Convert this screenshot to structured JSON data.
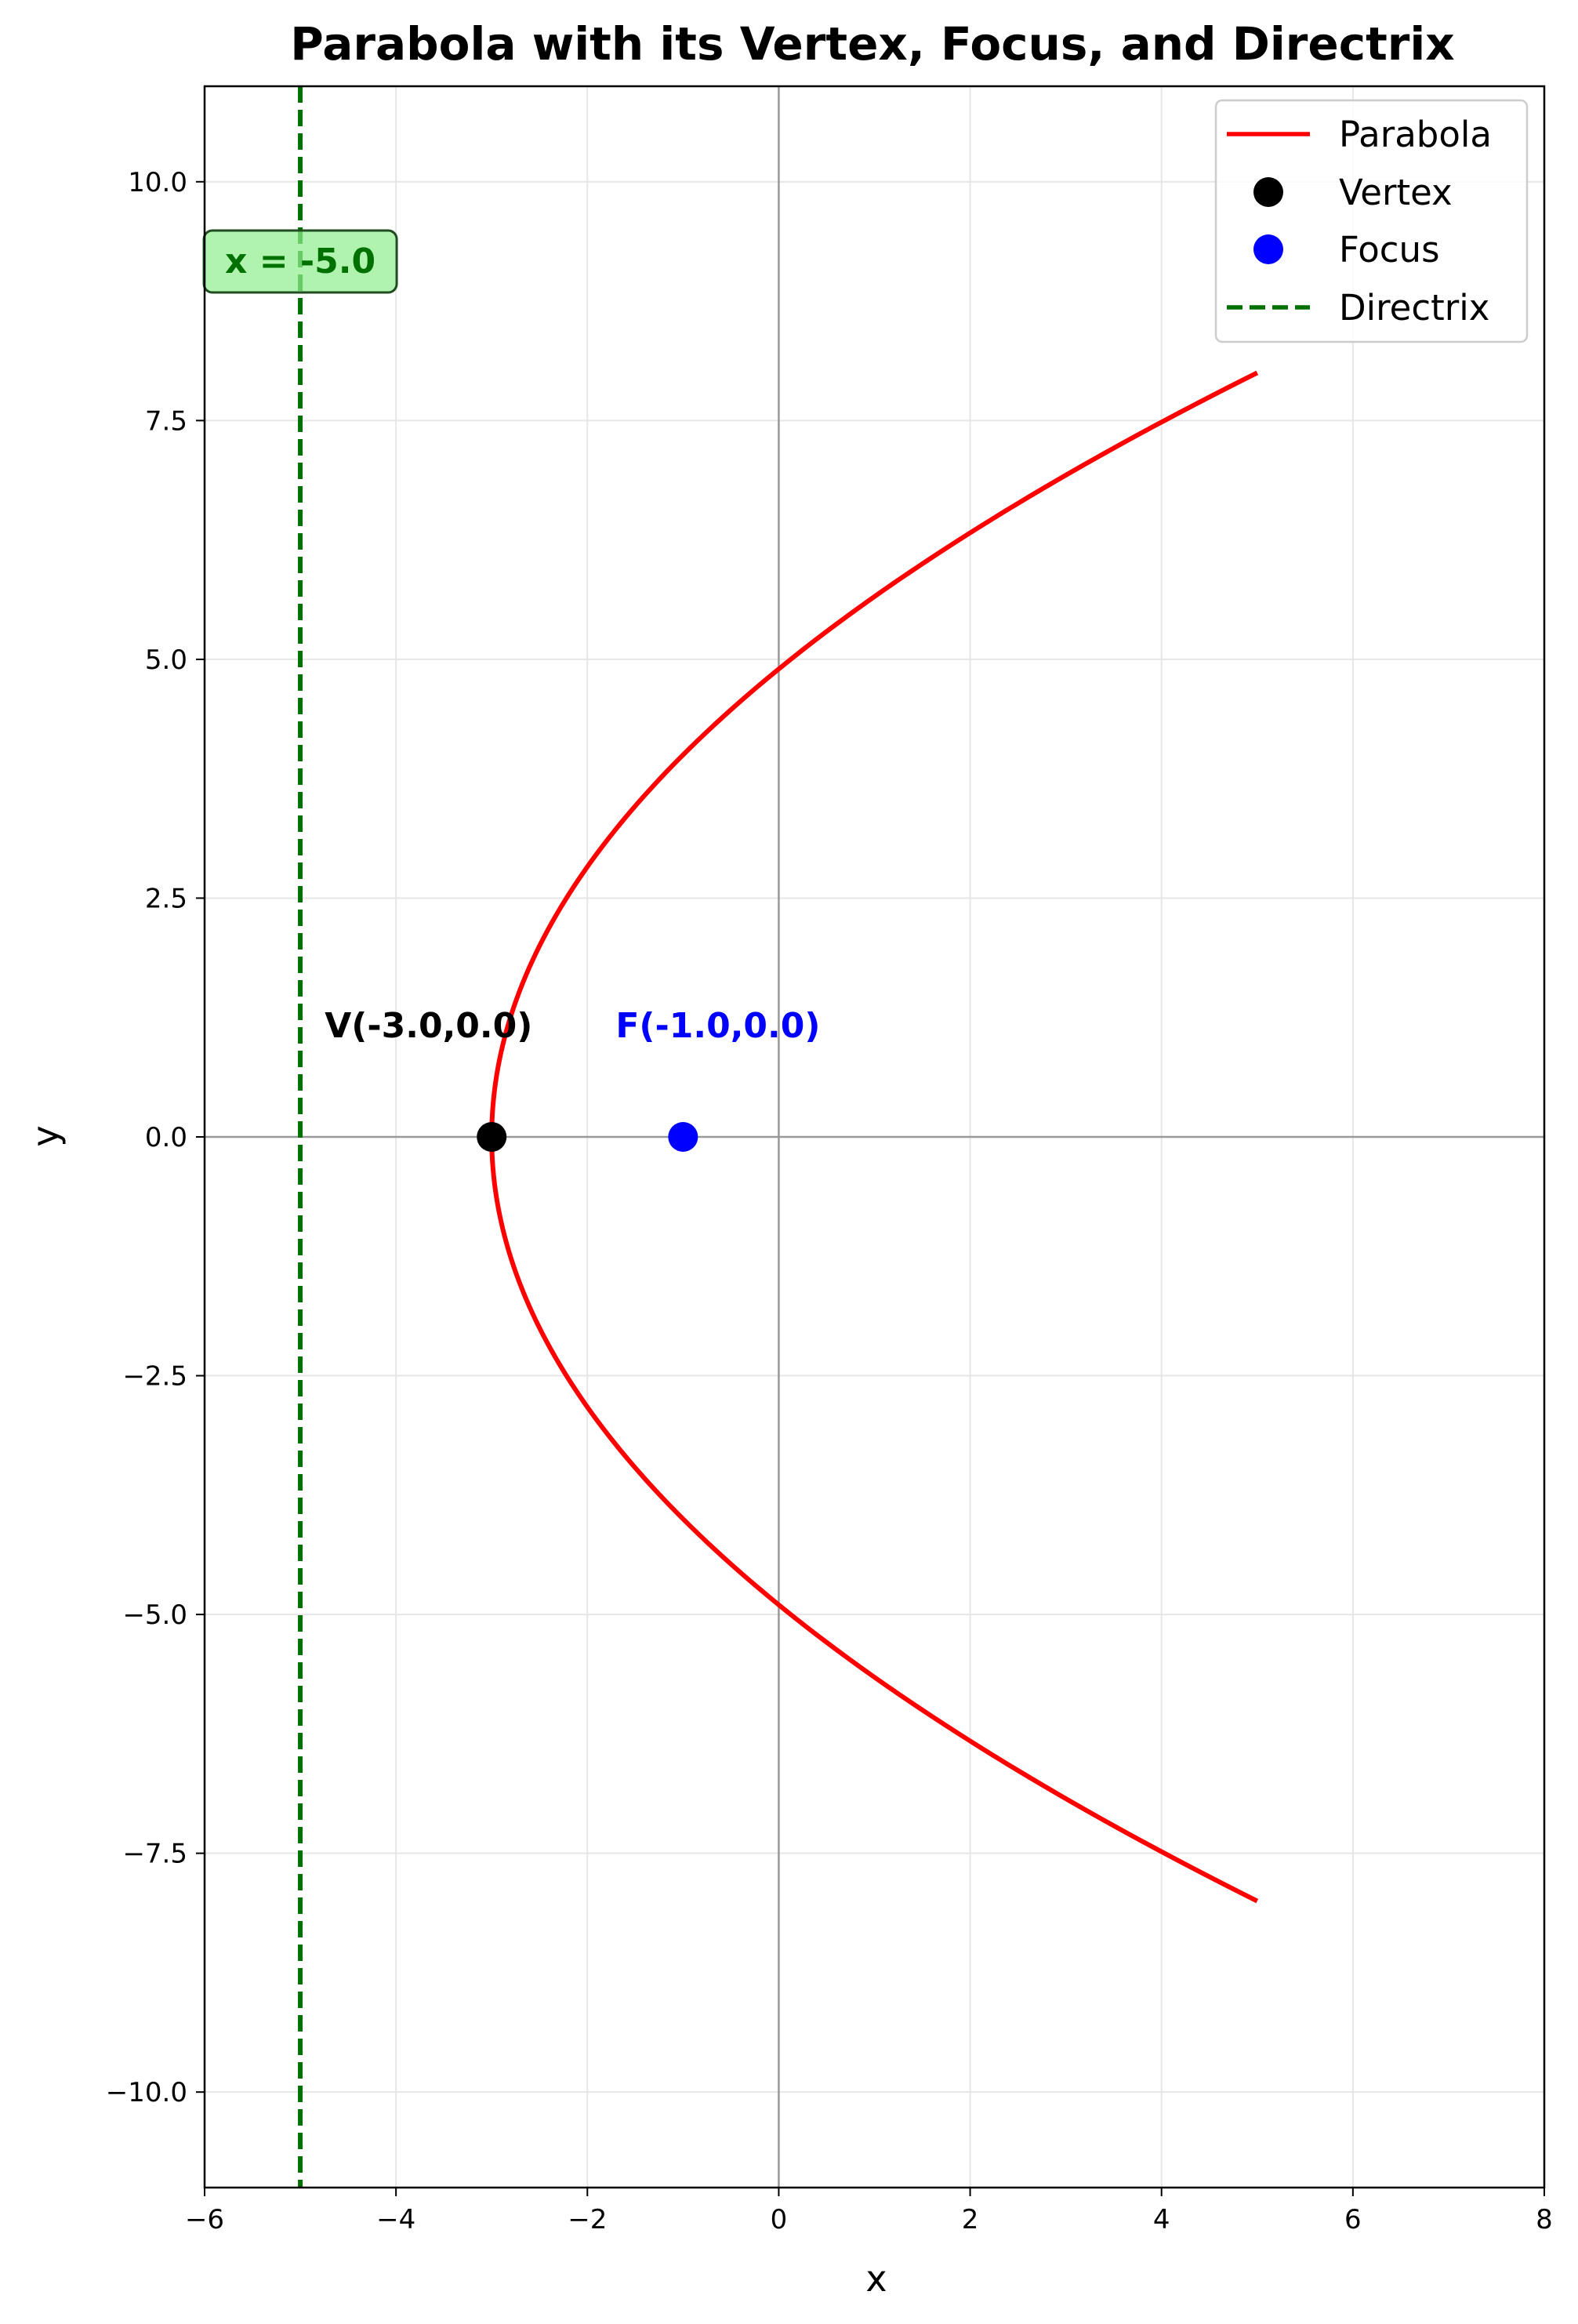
{
  "chart_data": {
    "type": "line",
    "title": "Parabola with its Vertex, Focus, and Directrix",
    "xlabel": "x",
    "ylabel": "y",
    "xlim": [
      -6,
      8
    ],
    "ylim": [
      -11,
      11
    ],
    "xticks": [
      -6,
      -4,
      -2,
      0,
      2,
      4,
      6,
      8
    ],
    "xtick_labels": [
      "−6",
      "−4",
      "−2",
      "0",
      "2",
      "4",
      "6",
      "8"
    ],
    "yticks": [
      -10,
      -7.5,
      -5,
      -2.5,
      0,
      2.5,
      5,
      7.5,
      10
    ],
    "ytick_labels": [
      "−10.0",
      "−7.5",
      "−5.0",
      "−2.5",
      "0.0",
      "2.5",
      "5.0",
      "7.5",
      "10.0"
    ],
    "grid": true,
    "legend_position": "top-right",
    "parabola": {
      "name": "Parabola",
      "color": "#ff0000",
      "vertex": [
        -3,
        0
      ],
      "p": 2,
      "y_range": [
        -8,
        8
      ]
    },
    "vertex": {
      "name": "Vertex",
      "x": -3,
      "y": 0,
      "color": "#000000",
      "label": "V(-3.0,0.0)"
    },
    "focus": {
      "name": "Focus",
      "x": -1,
      "y": 0,
      "color": "#0000ff",
      "label": "F(-1.0,0.0)"
    },
    "directrix": {
      "name": "Directrix",
      "x": -5,
      "color": "#007000",
      "label": "x = -5.0"
    }
  }
}
